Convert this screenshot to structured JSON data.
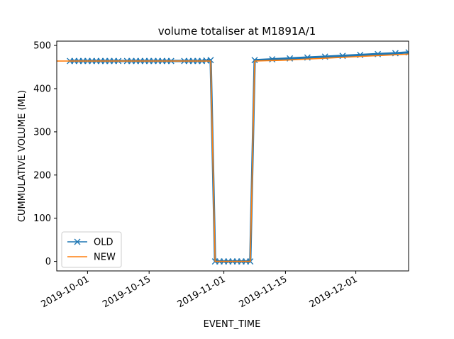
{
  "chart_data": {
    "type": "line",
    "title": "volume totaliser at M1891A/1",
    "xlabel": "EVENT_TIME",
    "ylabel": "CUMMULATIVE VOLUME (ML)",
    "xlim": [
      "2019-09-24",
      "2019-12-13"
    ],
    "ylim": [
      -22,
      510
    ],
    "x_ticks": [
      "2019-10-01",
      "2019-10-15",
      "2019-11-01",
      "2019-11-15",
      "2019-12-01"
    ],
    "y_ticks": [
      0,
      100,
      200,
      300,
      400,
      500
    ],
    "grid": false,
    "legend": "lower-left",
    "colors": {
      "OLD": "#1f77b4",
      "NEW": "#ff7f0e"
    },
    "series": [
      {
        "name": "OLD",
        "marker": "x",
        "segments": [
          {
            "x": [
              "2019-09-27",
              "2019-09-28",
              "2019-09-29",
              "2019-09-30",
              "2019-10-01",
              "2019-10-02",
              "2019-10-03",
              "2019-10-04",
              "2019-10-05",
              "2019-10-06",
              "2019-10-07",
              "2019-10-08"
            ],
            "y": [
              464,
              464,
              464,
              464,
              464,
              464,
              464,
              464,
              464,
              464,
              464,
              464
            ]
          },
          {
            "x": [
              "2019-10-10",
              "2019-10-11",
              "2019-10-12",
              "2019-10-13",
              "2019-10-14",
              "2019-10-15",
              "2019-10-16",
              "2019-10-17",
              "2019-10-18",
              "2019-10-19",
              "2019-10-20"
            ],
            "y": [
              464,
              464,
              464,
              464,
              464,
              464,
              464,
              464,
              464,
              464,
              464
            ]
          },
          {
            "x": [
              "2019-10-23",
              "2019-10-24",
              "2019-10-25",
              "2019-10-26",
              "2019-10-27",
              "2019-10-28",
              "2019-10-29"
            ],
            "y": [
              464,
              464,
              464,
              464,
              464,
              465,
              466
            ]
          },
          {
            "x": [
              "2019-10-30",
              "2019-10-31",
              "2019-11-01",
              "2019-11-02",
              "2019-11-03",
              "2019-11-04",
              "2019-11-05",
              "2019-11-06",
              "2019-11-07"
            ],
            "y": [
              0,
              0,
              0,
              0,
              0,
              0,
              0,
              0,
              0
            ]
          },
          {
            "x": [
              "2019-11-08",
              "2019-11-12",
              "2019-11-16",
              "2019-11-20",
              "2019-11-24",
              "2019-11-28",
              "2019-12-02",
              "2019-12-06",
              "2019-12-10",
              "2019-12-13"
            ],
            "y": [
              466,
              468,
              470,
              472,
              474,
              476,
              478,
              480,
              482,
              484
            ]
          }
        ]
      },
      {
        "name": "NEW",
        "marker": "none",
        "x": [
          "2019-09-24",
          "2019-10-29",
          "2019-10-30",
          "2019-11-07",
          "2019-11-08",
          "2019-11-15",
          "2019-12-01",
          "2019-12-13"
        ],
        "y": [
          464,
          464,
          0,
          0,
          464,
          466,
          474,
          480
        ]
      }
    ]
  }
}
